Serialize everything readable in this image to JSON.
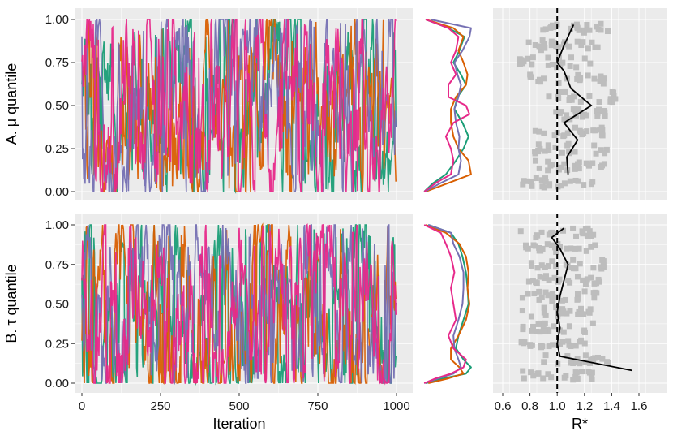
{
  "colors": {
    "panel_bg": "#ebebeb",
    "grid": "#ffffff",
    "chains": [
      "#1b9e77",
      "#d95f02",
      "#7570b3",
      "#e7298a"
    ],
    "rstar_points": "#bdbdbd",
    "rstar_line": "#000000",
    "ref_line": "#000000"
  },
  "labels": {
    "row_a": "A. μ quantile",
    "row_b": "B. τ quantile",
    "xlabel_trace": "Iteration",
    "xlabel_rstar": "R*"
  },
  "chart_data": [
    {
      "id": "trace-mu",
      "type": "line",
      "xlim": [
        0,
        1000
      ],
      "ylim": [
        0,
        1
      ],
      "x_ticks": [
        "0",
        "250",
        "500",
        "750",
        "1000"
      ],
      "y_ticks": [
        "0.00",
        "0.25",
        "0.50",
        "0.75",
        "1.00"
      ],
      "series_count": 4
    },
    {
      "id": "trace-tau",
      "type": "line",
      "xlim": [
        0,
        1000
      ],
      "ylim": [
        0,
        1
      ],
      "x_ticks": [
        "0",
        "250",
        "500",
        "750",
        "1000"
      ],
      "y_ticks": [
        "0.00",
        "0.25",
        "0.50",
        "0.75",
        "1.00"
      ],
      "series_count": 4
    },
    {
      "id": "density-mu",
      "type": "line",
      "ylim": [
        0,
        1
      ],
      "densities": [
        [
          [
            0.0,
            0.02
          ],
          [
            0.05,
            0.2
          ],
          [
            0.1,
            0.45
          ],
          [
            0.18,
            0.65
          ],
          [
            0.25,
            0.8
          ],
          [
            0.32,
            0.9
          ],
          [
            0.4,
            0.78
          ],
          [
            0.48,
            0.62
          ],
          [
            0.55,
            0.68
          ],
          [
            0.62,
            0.85
          ],
          [
            0.68,
            0.75
          ],
          [
            0.75,
            0.6
          ],
          [
            0.82,
            0.72
          ],
          [
            0.9,
            0.82
          ],
          [
            0.95,
            0.5
          ],
          [
            1.0,
            0.05
          ]
        ],
        [
          [
            0.0,
            0.05
          ],
          [
            0.05,
            0.5
          ],
          [
            0.1,
            0.95
          ],
          [
            0.18,
            0.9
          ],
          [
            0.25,
            0.7
          ],
          [
            0.32,
            0.6
          ],
          [
            0.4,
            0.55
          ],
          [
            0.48,
            0.55
          ],
          [
            0.55,
            0.65
          ],
          [
            0.62,
            0.85
          ],
          [
            0.68,
            0.88
          ],
          [
            0.75,
            0.8
          ],
          [
            0.82,
            0.7
          ],
          [
            0.9,
            0.8
          ],
          [
            0.95,
            0.6
          ],
          [
            1.0,
            0.05
          ]
        ],
        [
          [
            0.0,
            0.03
          ],
          [
            0.05,
            0.35
          ],
          [
            0.1,
            0.7
          ],
          [
            0.18,
            0.75
          ],
          [
            0.25,
            0.7
          ],
          [
            0.32,
            0.72
          ],
          [
            0.4,
            0.65
          ],
          [
            0.48,
            0.62
          ],
          [
            0.55,
            0.7
          ],
          [
            0.62,
            0.75
          ],
          [
            0.68,
            0.68
          ],
          [
            0.75,
            0.62
          ],
          [
            0.82,
            0.78
          ],
          [
            0.9,
            0.92
          ],
          [
            0.95,
            0.95
          ],
          [
            1.0,
            0.15
          ]
        ],
        [
          [
            0.0,
            0.02
          ],
          [
            0.05,
            0.25
          ],
          [
            0.1,
            0.55
          ],
          [
            0.18,
            0.6
          ],
          [
            0.25,
            0.55
          ],
          [
            0.32,
            0.45
          ],
          [
            0.4,
            0.6
          ],
          [
            0.45,
            0.92
          ],
          [
            0.5,
            0.85
          ],
          [
            0.55,
            0.5
          ],
          [
            0.62,
            0.5
          ],
          [
            0.68,
            0.65
          ],
          [
            0.75,
            0.55
          ],
          [
            0.82,
            0.65
          ],
          [
            0.9,
            0.7
          ],
          [
            0.95,
            0.5
          ],
          [
            1.0,
            0.05
          ]
        ]
      ]
    },
    {
      "id": "density-tau",
      "type": "line",
      "ylim": [
        0,
        1
      ],
      "densities": [
        [
          [
            0.0,
            0.05
          ],
          [
            0.03,
            0.4
          ],
          [
            0.06,
            0.85
          ],
          [
            0.1,
            0.95
          ],
          [
            0.15,
            0.8
          ],
          [
            0.22,
            0.65
          ],
          [
            0.3,
            0.7
          ],
          [
            0.4,
            0.8
          ],
          [
            0.5,
            0.9
          ],
          [
            0.6,
            0.88
          ],
          [
            0.7,
            0.85
          ],
          [
            0.8,
            0.78
          ],
          [
            0.88,
            0.7
          ],
          [
            0.95,
            0.55
          ],
          [
            1.0,
            0.1
          ]
        ],
        [
          [
            0.0,
            0.1
          ],
          [
            0.03,
            0.5
          ],
          [
            0.06,
            0.8
          ],
          [
            0.1,
            0.72
          ],
          [
            0.15,
            0.55
          ],
          [
            0.22,
            0.55
          ],
          [
            0.3,
            0.7
          ],
          [
            0.4,
            0.85
          ],
          [
            0.5,
            0.92
          ],
          [
            0.6,
            0.88
          ],
          [
            0.7,
            0.9
          ],
          [
            0.8,
            0.85
          ],
          [
            0.88,
            0.72
          ],
          [
            0.95,
            0.45
          ],
          [
            1.0,
            0.05
          ]
        ],
        [
          [
            0.0,
            0.02
          ],
          [
            0.03,
            0.3
          ],
          [
            0.06,
            0.6
          ],
          [
            0.1,
            0.75
          ],
          [
            0.15,
            0.7
          ],
          [
            0.22,
            0.62
          ],
          [
            0.3,
            0.6
          ],
          [
            0.4,
            0.7
          ],
          [
            0.5,
            0.78
          ],
          [
            0.6,
            0.8
          ],
          [
            0.7,
            0.8
          ],
          [
            0.8,
            0.72
          ],
          [
            0.88,
            0.6
          ],
          [
            0.95,
            0.55
          ],
          [
            1.0,
            0.1
          ]
        ],
        [
          [
            0.0,
            0.02
          ],
          [
            0.03,
            0.25
          ],
          [
            0.06,
            0.55
          ],
          [
            0.1,
            0.8
          ],
          [
            0.15,
            0.85
          ],
          [
            0.22,
            0.6
          ],
          [
            0.3,
            0.5
          ],
          [
            0.4,
            0.65
          ],
          [
            0.5,
            0.6
          ],
          [
            0.6,
            0.55
          ],
          [
            0.7,
            0.62
          ],
          [
            0.8,
            0.55
          ],
          [
            0.88,
            0.45
          ],
          [
            0.95,
            0.35
          ],
          [
            1.0,
            0.02
          ]
        ]
      ]
    },
    {
      "id": "rstar-mu",
      "type": "scatter",
      "xlim": [
        0.55,
        1.75
      ],
      "ylim": [
        0,
        1
      ],
      "x_ticks": [
        "0.6",
        "0.8",
        "1.0",
        "1.2",
        "1.4",
        "1.6"
      ],
      "reference_x": 1.0,
      "median_line": [
        [
          1.08,
          0.1
        ],
        [
          1.07,
          0.2
        ],
        [
          1.15,
          0.3
        ],
        [
          1.05,
          0.4
        ],
        [
          1.25,
          0.5
        ],
        [
          1.1,
          0.6
        ],
        [
          1.05,
          0.7
        ],
        [
          1.0,
          0.75
        ],
        [
          1.05,
          0.85
        ],
        [
          1.12,
          0.97
        ]
      ]
    },
    {
      "id": "rstar-tau",
      "type": "scatter",
      "xlim": [
        0.55,
        1.75
      ],
      "ylim": [
        0,
        1
      ],
      "x_ticks": [
        "0.6",
        "0.8",
        "1.0",
        "1.2",
        "1.4",
        "1.6"
      ],
      "reference_x": 1.0,
      "median_line": [
        [
          1.55,
          0.08
        ],
        [
          1.02,
          0.17
        ],
        [
          1.0,
          0.25
        ],
        [
          1.02,
          0.35
        ],
        [
          1.0,
          0.45
        ],
        [
          1.02,
          0.55
        ],
        [
          1.05,
          0.65
        ],
        [
          1.08,
          0.75
        ],
        [
          1.02,
          0.85
        ],
        [
          0.96,
          0.92
        ],
        [
          1.05,
          0.98
        ]
      ]
    }
  ]
}
